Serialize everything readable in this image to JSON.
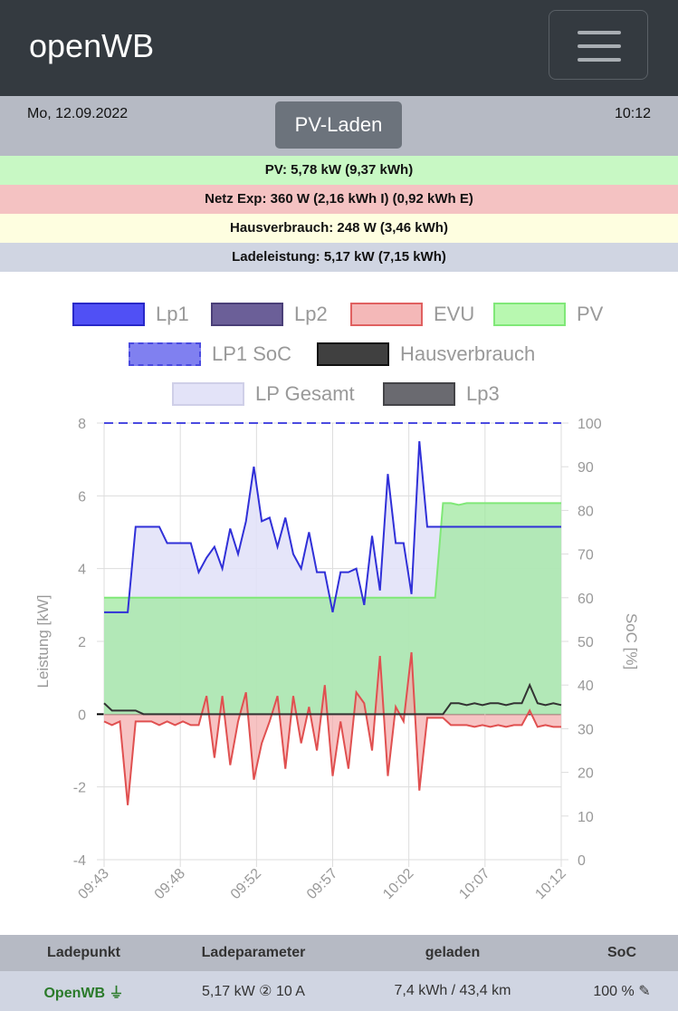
{
  "header": {
    "brand": "openWB",
    "menu_icon": "hamburger-icon"
  },
  "status": {
    "date": "Mo, 12.09.2022",
    "time": "10:12",
    "mode_button": "PV-Laden"
  },
  "summary": {
    "pv": "PV: 5,78 kW (9,37 kWh)",
    "grid": "Netz Exp: 360 W (2,16 kWh I) (0,92 kWh E)",
    "house": "Hausverbrauch: 248 W (3,46 kWh)",
    "charge": "Ladeleistung: 5,17 kW (7,15 kWh)"
  },
  "colors": {
    "pv_row": "#c8f8c4",
    "grid_row": "#f4c2c2",
    "house_row": "#fefee0",
    "charge_row": "#d0d5e2"
  },
  "chart_data": {
    "type": "line",
    "legend": [
      {
        "name": "Lp1",
        "fill": "#5050f5",
        "border": "#2828c8"
      },
      {
        "name": "Lp2",
        "fill": "#6b5f98",
        "border": "#4a3f78"
      },
      {
        "name": "EVU",
        "fill": "#f4b8b8",
        "border": "#e06060"
      },
      {
        "name": "PV",
        "fill": "#b8f8b0",
        "border": "#80e878"
      },
      {
        "name": "LP1 SoC",
        "fill": "#8080f0",
        "border": "#4a4ae0"
      },
      {
        "name": "Hausverbrauch",
        "fill": "#404040",
        "border": "#111111"
      },
      {
        "name": "LP Gesamt",
        "fill": "#e3e3f8",
        "border": "#cfcfe8"
      },
      {
        "name": "Lp3",
        "fill": "#6a6a70",
        "border": "#444448"
      }
    ],
    "ylabel": "Leistung [kW]",
    "y2label": "SoC [%]",
    "ylim": [
      -4,
      8
    ],
    "y2lim": [
      0,
      100
    ],
    "yticks": [
      "8",
      "6",
      "4",
      "2",
      "0",
      "-2",
      "-4"
    ],
    "y2ticks": [
      "100",
      "90",
      "80",
      "70",
      "60",
      "50",
      "40",
      "30",
      "20",
      "10",
      "0"
    ],
    "xticks": [
      "09:43",
      "09:48",
      "09:52",
      "09:57",
      "10:02",
      "10:07",
      "10:12"
    ],
    "x_minutes_start": 0,
    "x_minutes_end": 29,
    "x_step_min": 0.5,
    "series": {
      "Lp1": [
        2.8,
        2.8,
        2.8,
        2.8,
        5.15,
        5.15,
        5.15,
        5.15,
        4.7,
        4.7,
        4.7,
        4.7,
        3.9,
        4.3,
        4.6,
        4.0,
        5.1,
        4.4,
        5.3,
        6.8,
        5.3,
        5.4,
        4.6,
        5.4,
        4.4,
        4.0,
        5.0,
        3.9,
        3.9,
        2.8,
        3.9,
        3.9,
        4.0,
        3.0,
        4.9,
        3.4,
        6.6,
        4.7,
        4.7,
        3.3,
        7.5,
        5.15,
        5.15,
        5.15,
        5.15,
        5.15,
        5.15,
        5.15,
        5.15,
        5.15,
        5.15,
        5.15,
        5.15,
        5.15,
        5.15,
        5.15,
        5.15,
        5.15,
        5.15
      ],
      "PV": [
        3.2,
        3.2,
        3.2,
        3.2,
        3.2,
        3.2,
        3.2,
        3.2,
        3.2,
        3.2,
        3.2,
        3.2,
        3.2,
        3.2,
        3.2,
        3.2,
        3.2,
        3.2,
        3.2,
        3.2,
        3.2,
        3.2,
        3.2,
        3.2,
        3.2,
        3.2,
        3.2,
        3.2,
        3.2,
        3.2,
        3.2,
        3.2,
        3.2,
        3.2,
        3.2,
        3.2,
        3.2,
        3.2,
        3.2,
        3.2,
        3.2,
        3.2,
        3.2,
        5.8,
        5.8,
        5.75,
        5.8,
        5.8,
        5.8,
        5.8,
        5.8,
        5.8,
        5.8,
        5.8,
        5.8,
        5.8,
        5.8,
        5.8,
        5.8
      ],
      "EVU": [
        -0.2,
        -0.3,
        -0.2,
        -2.5,
        -0.2,
        -0.2,
        -0.2,
        -0.3,
        -0.2,
        -0.3,
        -0.2,
        -0.3,
        -0.3,
        0.5,
        -1.2,
        0.5,
        -1.4,
        -0.2,
        0.6,
        -1.8,
        -0.8,
        -0.2,
        0.5,
        -1.5,
        0.5,
        -0.8,
        0.2,
        -1.0,
        0.8,
        -1.7,
        -0.2,
        -1.5,
        0.6,
        0.3,
        -1.0,
        1.6,
        -1.7,
        0.2,
        -0.2,
        1.7,
        -2.1,
        -0.1,
        -0.1,
        -0.1,
        -0.3,
        -0.3,
        -0.3,
        -0.35,
        -0.3,
        -0.35,
        -0.3,
        -0.35,
        -0.3,
        -0.3,
        0.1,
        -0.35,
        -0.3,
        -0.35,
        -0.35
      ],
      "Hausverbrauch": [
        0.3,
        0.1,
        0.1,
        0.1,
        0.1,
        0.0,
        0.0,
        0.0,
        0.0,
        0.0,
        0.0,
        0.0,
        0.0,
        0.0,
        0.0,
        0.0,
        0.0,
        0.0,
        0.0,
        0.0,
        0.0,
        0.0,
        0.0,
        0.0,
        0.0,
        0.0,
        0.0,
        0.0,
        0.0,
        0.0,
        0.0,
        0.0,
        0.0,
        0.0,
        0.0,
        0.0,
        0.0,
        0.0,
        0.0,
        0.0,
        0.0,
        0.0,
        0.0,
        0.0,
        0.3,
        0.3,
        0.25,
        0.3,
        0.25,
        0.3,
        0.3,
        0.25,
        0.3,
        0.3,
        0.8,
        0.3,
        0.25,
        0.3,
        0.25
      ],
      "LP1 SoC": 100
    }
  },
  "table": {
    "headers": [
      "Ladepunkt",
      "Ladeparameter",
      "geladen",
      "SoC"
    ],
    "rows": [
      {
        "name": "OpenWB",
        "params": "5,17 kW ② 10 A",
        "charged": "7,4 kWh / 43,4 km",
        "soc": "100 %"
      }
    ]
  }
}
